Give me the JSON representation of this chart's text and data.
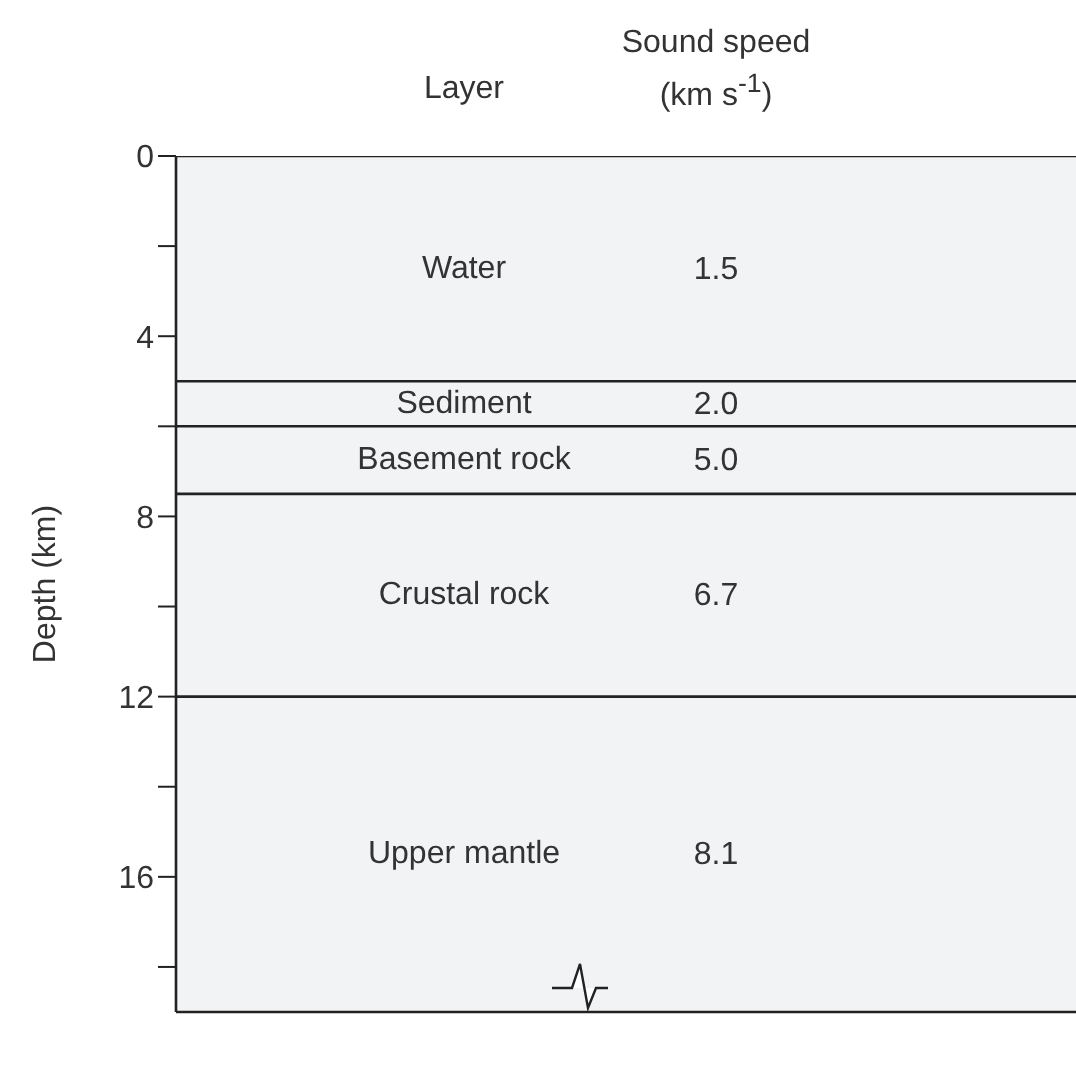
{
  "chart_data": {
    "type": "bar",
    "stacked": true,
    "categories": [
      null
    ],
    "ylabel": "Depth (km)",
    "ylim": [
      19,
      0
    ],
    "yticks": [
      0,
      {
        "value": 2,
        "label": null
      },
      4,
      {
        "value": 6,
        "label": null
      },
      8,
      {
        "value": 10,
        "label": null
      },
      12,
      {
        "value": 14,
        "label": null
      },
      16,
      {
        "value": 18,
        "label": null
      }
    ],
    "series": [
      {
        "name": "Water",
        "color": "#f2f3f5",
        "values": [
          5
        ]
      },
      {
        "name": "Sediment",
        "color": "#f2f3f5",
        "values": [
          1
        ]
      },
      {
        "name": "Basement rock",
        "color": "#f2f3f5",
        "values": [
          1.5
        ]
      },
      {
        "name": "Crustal rock",
        "color": "#f2f3f5",
        "values": [
          4.5
        ]
      },
      {
        "name": "Upper mantle",
        "color": "#f2f3f5",
        "values": [
          7
        ]
      }
    ],
    "annotations": [
      "Layer",
      "Sound speed (km s$^{-1}$)",
      "1.5",
      "2.0",
      "5.0",
      "6.7",
      "8.1"
    ]
  }
}
